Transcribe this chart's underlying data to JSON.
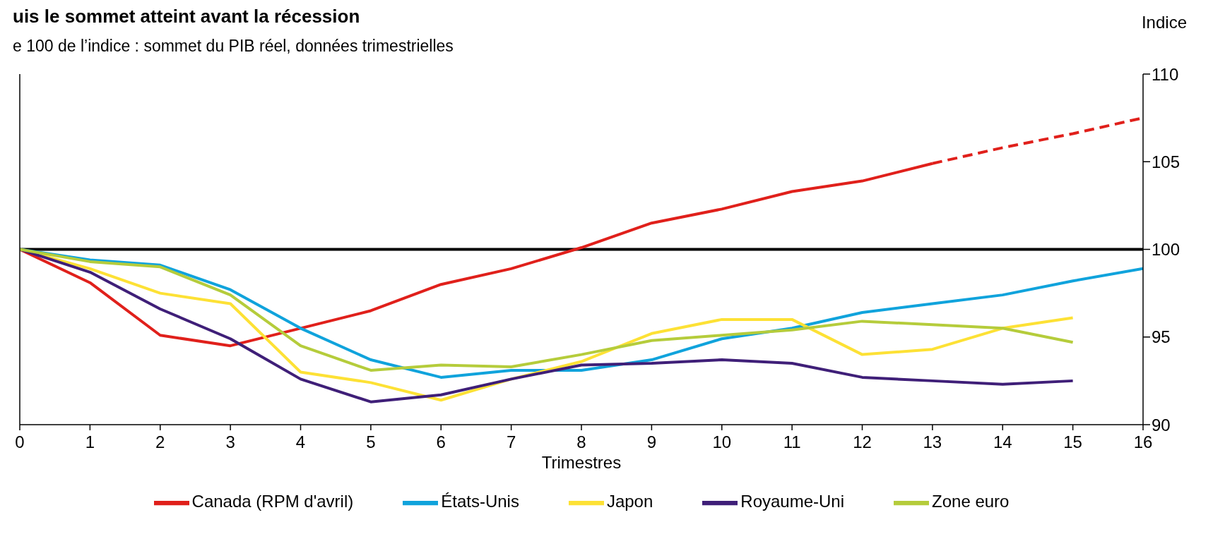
{
  "chart_data": {
    "type": "line",
    "title": "uis le sommet atteint avant la récession",
    "subtitle": "e 100 de l’indice : sommet du PIB réel, données trimestrielles",
    "xlabel": "Trimestres",
    "ylabel": "Indice",
    "x": [
      0,
      1,
      2,
      3,
      4,
      5,
      6,
      7,
      8,
      9,
      10,
      11,
      12,
      13,
      14,
      15,
      16
    ],
    "xlim": [
      0,
      16
    ],
    "xticks": [
      0,
      1,
      2,
      3,
      4,
      5,
      6,
      7,
      8,
      9,
      10,
      11,
      12,
      13,
      14,
      15,
      16
    ],
    "ylim": [
      90,
      110
    ],
    "yticks": [
      90,
      95,
      100,
      105,
      110
    ],
    "legend": "bottom",
    "ref_lines": [
      {
        "axis": "y",
        "value": 100,
        "color": "#000000"
      }
    ],
    "series": [
      {
        "name": "Canada (RPM d'avril)",
        "color": "#e0201b",
        "values": [
          100,
          98.1,
          95.1,
          94.5,
          95.5,
          96.5,
          98.0,
          98.9,
          100.1,
          101.5,
          102.3,
          103.3,
          103.9,
          104.9,
          null,
          null,
          null
        ]
      },
      {
        "color": "#e0201b",
        "line_style": "dashed",
        "values": [
          null,
          null,
          null,
          null,
          null,
          null,
          null,
          null,
          null,
          null,
          null,
          null,
          null,
          104.9,
          105.8,
          106.6,
          107.5
        ]
      },
      {
        "name": "États-Unis",
        "color": "#10a3dc",
        "values": [
          100,
          99.4,
          99.1,
          97.7,
          95.5,
          93.7,
          92.7,
          93.1,
          93.1,
          93.7,
          94.9,
          95.5,
          96.4,
          96.9,
          97.4,
          98.2,
          98.9
        ]
      },
      {
        "name": "Japon",
        "color": "#fde135",
        "values": [
          100,
          98.9,
          97.5,
          96.9,
          93.0,
          92.4,
          91.4,
          92.6,
          93.6,
          95.2,
          96.0,
          96.0,
          94.0,
          94.3,
          95.5,
          96.1,
          null
        ]
      },
      {
        "name": "Royaume-Uni",
        "color": "#3f1f78",
        "values": [
          100,
          98.7,
          96.6,
          94.9,
          92.6,
          91.3,
          91.7,
          92.6,
          93.4,
          93.5,
          93.7,
          93.5,
          92.7,
          92.5,
          92.3,
          92.5,
          null
        ]
      },
      {
        "name": "Zone euro",
        "color": "#b5cc3b",
        "values": [
          100,
          99.3,
          99.0,
          97.4,
          94.5,
          93.1,
          93.4,
          93.3,
          94.0,
          94.8,
          95.1,
          95.4,
          95.9,
          95.7,
          95.5,
          94.7,
          null
        ]
      }
    ]
  }
}
